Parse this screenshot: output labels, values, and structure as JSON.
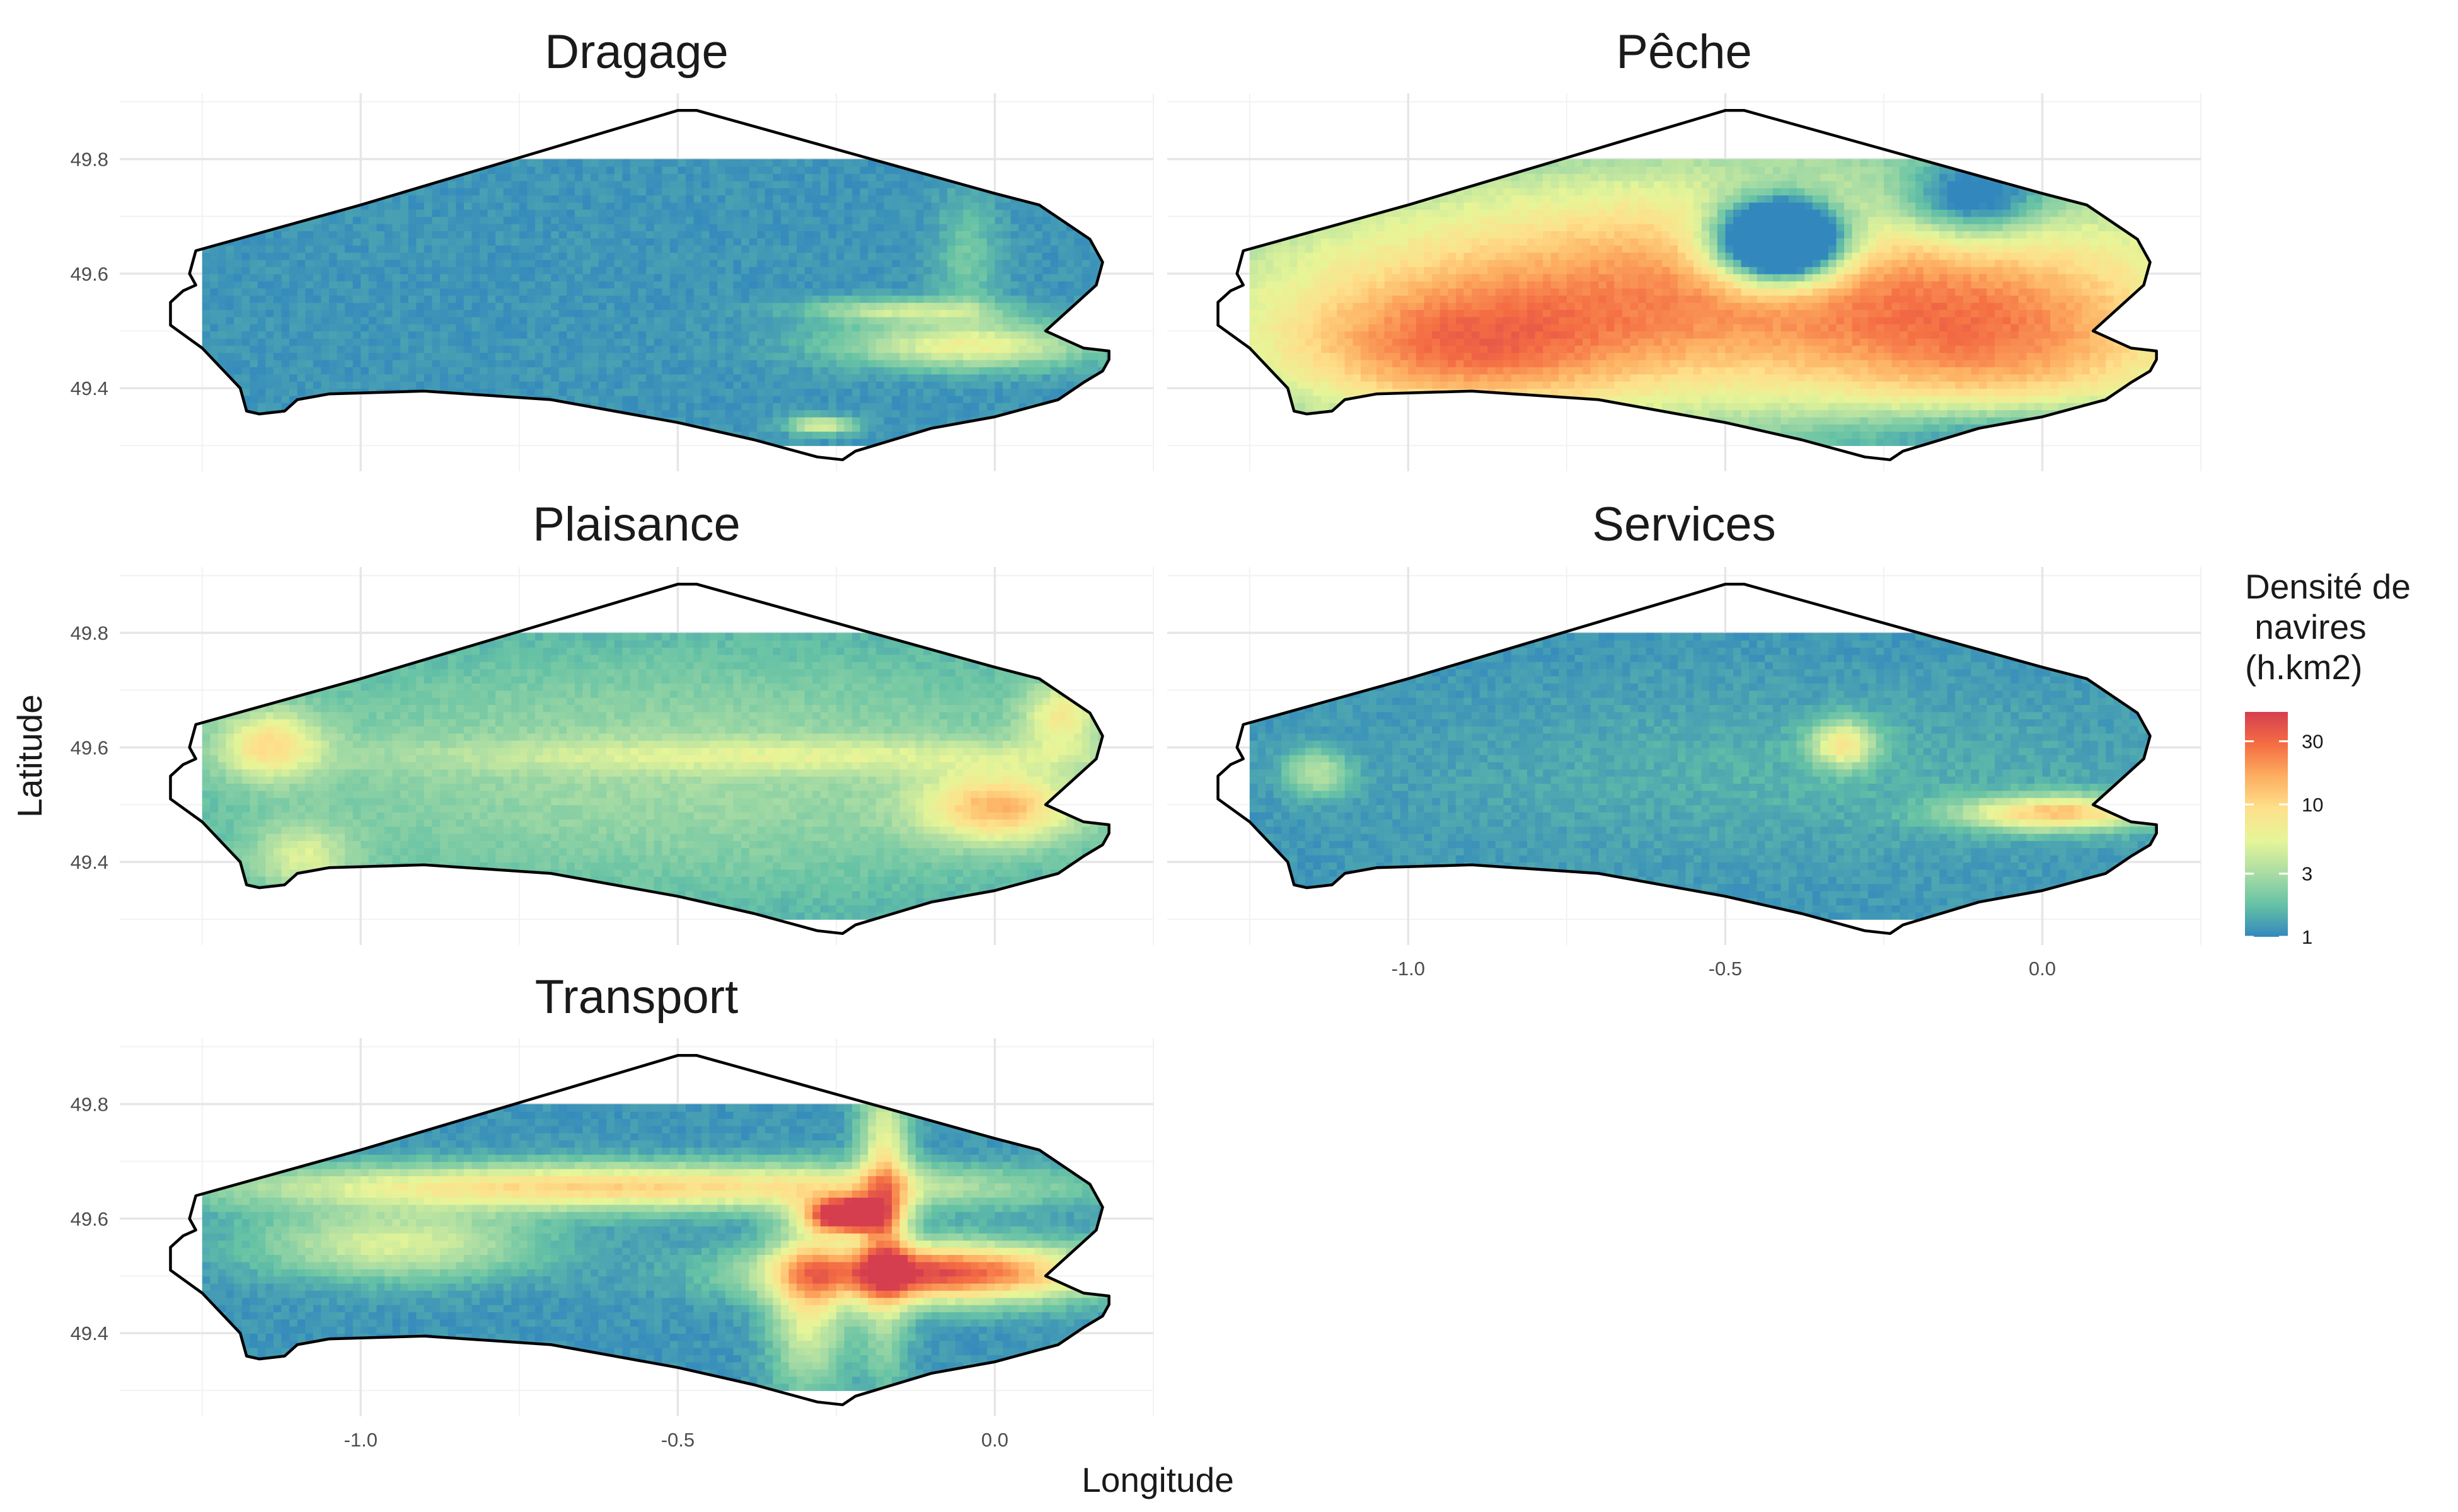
{
  "chart_data": {
    "type": "heatmap",
    "layout": "facet",
    "panels": [
      {
        "title": "Dragage",
        "hotspots": [
          {
            "lon": -0.05,
            "lat": 49.47,
            "rx": 0.2,
            "ry": 0.04,
            "v": 1.8
          },
          {
            "lon": -0.15,
            "lat": 49.53,
            "rx": 0.15,
            "ry": 0.02,
            "v": 1.4
          },
          {
            "lon": -0.28,
            "lat": 49.33,
            "rx": 0.05,
            "ry": 0.015,
            "v": 1.8
          },
          {
            "lon": -0.05,
            "lat": 49.62,
            "rx": 0.05,
            "ry": 0.12,
            "v": 0.6
          }
        ]
      },
      {
        "title": "Pêche",
        "hotspots": [
          {
            "lon": -0.5,
            "lat": 49.57,
            "rx": 0.8,
            "ry": 0.22,
            "v": 3.2
          },
          {
            "lon": -0.05,
            "lat": 49.45,
            "rx": 0.3,
            "ry": 0.15,
            "v": 1.5
          },
          {
            "lon": -0.95,
            "lat": 49.45,
            "rx": 0.3,
            "ry": 0.12,
            "v": 1.8
          },
          {
            "lon": -0.05,
            "lat": 49.32,
            "rx": 0.3,
            "ry": 0.05,
            "v": -1.2
          },
          {
            "lon": -0.42,
            "lat": 49.65,
            "rx": 0.1,
            "ry": 0.07,
            "v": -6.0
          },
          {
            "lon": -0.12,
            "lat": 49.72,
            "rx": 0.12,
            "ry": 0.07,
            "v": -2.0
          }
        ]
      },
      {
        "title": "Plaisance",
        "hotspots": [
          {
            "lon": -0.5,
            "lat": 49.55,
            "rx": 0.9,
            "ry": 0.25,
            "v": 1.0
          },
          {
            "lon": 0.0,
            "lat": 49.49,
            "rx": 0.12,
            "ry": 0.06,
            "v": 2.2
          },
          {
            "lon": -1.15,
            "lat": 49.6,
            "rx": 0.08,
            "ry": 0.06,
            "v": 1.8
          },
          {
            "lon": -1.1,
            "lat": 49.4,
            "rx": 0.08,
            "ry": 0.06,
            "v": 1.2
          },
          {
            "lon": -0.3,
            "lat": 49.58,
            "rx": 0.6,
            "ry": 0.03,
            "v": 0.8
          },
          {
            "lon": 0.1,
            "lat": 49.65,
            "rx": 0.06,
            "ry": 0.06,
            "v": 1.5
          }
        ]
      },
      {
        "title": "Services",
        "hotspots": [
          {
            "lon": 0.02,
            "lat": 49.48,
            "rx": 0.15,
            "ry": 0.03,
            "v": 2.6
          },
          {
            "lon": -0.32,
            "lat": 49.6,
            "rx": 0.05,
            "ry": 0.04,
            "v": 2.0
          },
          {
            "lon": -1.15,
            "lat": 49.55,
            "rx": 0.05,
            "ry": 0.04,
            "v": 1.2
          },
          {
            "lon": -0.4,
            "lat": 49.55,
            "rx": 0.6,
            "ry": 0.15,
            "v": 0.3
          }
        ]
      },
      {
        "title": "Transport",
        "hotspots": [
          {
            "lon": -0.6,
            "lat": 49.65,
            "rx": 0.6,
            "ry": 0.04,
            "v": 2.5
          },
          {
            "lon": -0.1,
            "lat": 49.5,
            "rx": 0.25,
            "ry": 0.05,
            "v": 4.0
          },
          {
            "lon": -0.24,
            "lat": 49.6,
            "rx": 0.06,
            "ry": 0.03,
            "v": 5.0
          },
          {
            "lon": -0.18,
            "lat": 49.62,
            "rx": 0.04,
            "ry": 0.25,
            "v": 2.2
          },
          {
            "lon": -0.3,
            "lat": 49.45,
            "rx": 0.06,
            "ry": 0.15,
            "v": 1.8
          },
          {
            "lon": -0.95,
            "lat": 49.55,
            "rx": 0.22,
            "ry": 0.06,
            "v": 1.6
          }
        ]
      }
    ],
    "xlabel": "Longitude",
    "ylabel": "Latitude",
    "xlim": [
      -1.38,
      0.25
    ],
    "ylim": [
      49.255,
      49.915
    ],
    "grid_data_range": {
      "lon": [
        -1.25,
        0.18
      ],
      "lat": [
        49.3,
        49.8
      ]
    },
    "x_ticks": [
      -1.0,
      -0.5,
      0.0
    ],
    "x_tick_labels": [
      "-1.0",
      "-0.5",
      "0.0"
    ],
    "y_ticks": [
      49.4,
      49.6,
      49.8
    ],
    "y_tick_labels": [
      "49.4",
      "49.6",
      "49.8"
    ],
    "x_ticks_shown_on": [
      "Services",
      "Transport"
    ],
    "y_ticks_shown_on": [
      "Dragage",
      "Plaisance",
      "Transport"
    ],
    "grid": true,
    "coastline": [
      [
        -1.26,
        49.64
      ],
      [
        -1.0,
        49.72
      ],
      [
        -0.5,
        49.885
      ],
      [
        -0.47,
        49.885
      ],
      [
        0.0,
        49.74
      ],
      [
        0.07,
        49.72
      ],
      [
        0.11,
        49.69
      ],
      [
        0.15,
        49.66
      ],
      [
        0.17,
        49.62
      ],
      [
        0.16,
        49.58
      ],
      [
        0.12,
        49.54
      ],
      [
        0.08,
        49.5
      ],
      [
        0.12,
        49.48
      ],
      [
        0.14,
        49.47
      ],
      [
        0.18,
        49.465
      ],
      [
        0.18,
        49.45
      ],
      [
        0.17,
        49.43
      ],
      [
        0.14,
        49.41
      ],
      [
        0.1,
        49.38
      ],
      [
        0.0,
        49.35
      ],
      [
        -0.1,
        49.33
      ],
      [
        -0.22,
        49.29
      ],
      [
        -0.24,
        49.275
      ],
      [
        -0.28,
        49.28
      ],
      [
        -0.38,
        49.31
      ],
      [
        -0.5,
        49.34
      ],
      [
        -0.7,
        49.38
      ],
      [
        -0.9,
        49.395
      ],
      [
        -1.05,
        49.39
      ],
      [
        -1.1,
        49.38
      ],
      [
        -1.12,
        49.36
      ],
      [
        -1.16,
        49.355
      ],
      [
        -1.18,
        49.36
      ],
      [
        -1.19,
        49.4
      ],
      [
        -1.25,
        49.47
      ],
      [
        -1.3,
        49.51
      ],
      [
        -1.3,
        49.55
      ],
      [
        -1.28,
        49.57
      ],
      [
        -1.26,
        49.58
      ],
      [
        -1.27,
        49.6
      ],
      [
        -1.26,
        49.64
      ]
    ],
    "colorbar": {
      "title": "Densité de\n navires\n(h.km2)",
      "scale": "log",
      "ticks": [
        1,
        3,
        10,
        30
      ],
      "tick_labels": [
        "1",
        "3",
        "10",
        "30"
      ],
      "range": [
        1,
        50
      ],
      "colors": [
        "#3288bd",
        "#66c2a5",
        "#abdda4",
        "#e6f598",
        "#fee08b",
        "#fdae61",
        "#f46d43",
        "#d53e4f"
      ]
    }
  }
}
